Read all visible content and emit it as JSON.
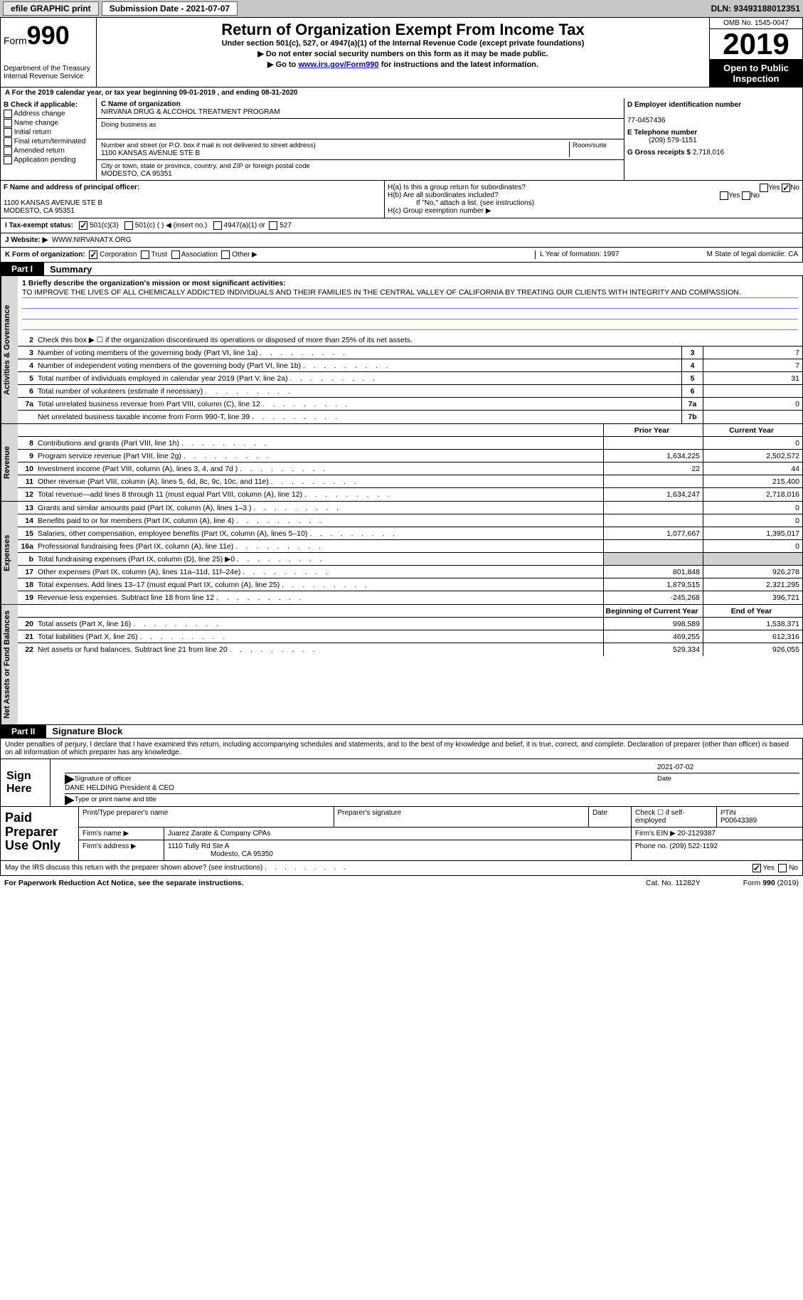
{
  "topbar": {
    "efile": "efile GRAPHIC print",
    "sub_label": "Submission Date - 2021-07-07",
    "dln": "DLN: 93493188012351"
  },
  "header": {
    "form_prefix": "Form",
    "form_num": "990",
    "dept": "Department of the Treasury\nInternal Revenue Service",
    "title": "Return of Organization Exempt From Income Tax",
    "sub": "Under section 501(c), 527, or 4947(a)(1) of the Internal Revenue Code (except private foundations)",
    "line1": "▶ Do not enter social security numbers on this form as it may be made public.",
    "line2_a": "▶ Go to ",
    "line2_link": "www.irs.gov/Form990",
    "line2_b": " for instructions and the latest information.",
    "omb": "OMB No. 1545-0047",
    "year": "2019",
    "open": "Open to Public Inspection"
  },
  "lineA": "A For the 2019 calendar year, or tax year beginning 09-01-2019    , and ending 08-31-2020",
  "colB": {
    "hdr": "B Check if applicable:",
    "opts": [
      "Address change",
      "Name change",
      "Initial return",
      "Final return/terminated",
      "Amended return",
      "Application pending"
    ]
  },
  "colC": {
    "name_lbl": "C Name of organization",
    "name": "NIRVANA DRUG & ALCOHOL TREATMENT PROGRAM",
    "dba_lbl": "Doing business as",
    "dba": "",
    "addr_lbl": "Number and street (or P.O. box if mail is not delivered to street address)",
    "room_lbl": "Room/suite",
    "addr": "1100 KANSAS AVENUE STE B",
    "city_lbl": "City or town, state or province, country, and ZIP or foreign postal code",
    "city": "MODESTO, CA  95351"
  },
  "colD": {
    "d_lbl": "D Employer identification number",
    "ein": "77-0457436",
    "e_lbl": "E Telephone number",
    "phone": "(209) 579-1151",
    "g_lbl": "G Gross receipts $",
    "gross": "2,718,016"
  },
  "rowF": {
    "f_lbl": "F Name and address of principal officer:",
    "f_addr": "1100 KANSAS AVENUE STE B\nMODESTO, CA  95351",
    "ha": "H(a)  Is this a group return for subordinates?",
    "hb": "H(b)  Are all subordinates included?",
    "hb_note": "If \"No,\" attach a list. (see instructions)",
    "hc": "H(c)  Group exemption number ▶"
  },
  "statusRow": {
    "i": "I   Tax-exempt status:",
    "o1": "501(c)(3)",
    "o2": "501(c) (  ) ◀ (insert no.)",
    "o3": "4947(a)(1) or",
    "o4": "527"
  },
  "webRow": {
    "j": "J   Website: ▶",
    "url": "WWW.NIRVANATX.ORG"
  },
  "korg": {
    "k": "K Form of organization:",
    "o1": "Corporation",
    "o2": "Trust",
    "o3": "Association",
    "o4": "Other ▶",
    "l": "L Year of formation: 1997",
    "m": "M State of legal domicile: CA"
  },
  "part1": {
    "hdr": "Part I",
    "title": "Summary"
  },
  "mission": {
    "lbl": "1   Briefly describe the organization's mission or most significant activities:",
    "text": "TO IMPROVE THE LIVES OF ALL CHEMICALLY ADDICTED INDIVIDUALS AND THEIR FAMILIES IN THE CENTRAL VALLEY OF CALIFORNIA BY TREATING OUR CLIENTS WITH INTEGRITY AND COMPASSION."
  },
  "gov": {
    "l2": "Check this box ▶ ☐  if the organization discontinued its operations or disposed of more than 25% of its net assets.",
    "rows": [
      {
        "n": "3",
        "d": "Number of voting members of the governing body (Part VI, line 1a)",
        "box": "3",
        "v": "7"
      },
      {
        "n": "4",
        "d": "Number of independent voting members of the governing body (Part VI, line 1b)",
        "box": "4",
        "v": "7"
      },
      {
        "n": "5",
        "d": "Total number of individuals employed in calendar year 2019 (Part V, line 2a)",
        "box": "5",
        "v": "31"
      },
      {
        "n": "6",
        "d": "Total number of volunteers (estimate if necessary)",
        "box": "6",
        "v": ""
      },
      {
        "n": "7a",
        "d": "Total unrelated business revenue from Part VIII, column (C), line 12",
        "box": "7a",
        "v": "0"
      },
      {
        "n": "",
        "d": "Net unrelated business taxable income from Form 990-T, line 39",
        "box": "7b",
        "v": ""
      }
    ]
  },
  "pycy": {
    "py": "Prior Year",
    "cy": "Current Year"
  },
  "rev": {
    "label": "Revenue",
    "rows": [
      {
        "n": "8",
        "d": "Contributions and grants (Part VIII, line 1h)",
        "py": "",
        "cy": "0"
      },
      {
        "n": "9",
        "d": "Program service revenue (Part VIII, line 2g)",
        "py": "1,634,225",
        "cy": "2,502,572"
      },
      {
        "n": "10",
        "d": "Investment income (Part VIII, column (A), lines 3, 4, and 7d )",
        "py": "22",
        "cy": "44"
      },
      {
        "n": "11",
        "d": "Other revenue (Part VIII, column (A), lines 5, 6d, 8c, 9c, 10c, and 11e)",
        "py": "",
        "cy": "215,400"
      },
      {
        "n": "12",
        "d": "Total revenue—add lines 8 through 11 (must equal Part VIII, column (A), line 12)",
        "py": "1,634,247",
        "cy": "2,718,016"
      }
    ]
  },
  "exp": {
    "label": "Expenses",
    "rows": [
      {
        "n": "13",
        "d": "Grants and similar amounts paid (Part IX, column (A), lines 1–3 )",
        "py": "",
        "cy": "0"
      },
      {
        "n": "14",
        "d": "Benefits paid to or for members (Part IX, column (A), line 4)",
        "py": "",
        "cy": "0"
      },
      {
        "n": "15",
        "d": "Salaries, other compensation, employee benefits (Part IX, column (A), lines 5–10)",
        "py": "1,077,667",
        "cy": "1,395,017"
      },
      {
        "n": "16a",
        "d": "Professional fundraising fees (Part IX, column (A), line 11e)",
        "py": "",
        "cy": "0"
      },
      {
        "n": "b",
        "d": "Total fundraising expenses (Part IX, column (D), line 25) ▶0",
        "py": "GREY",
        "cy": "GREY"
      },
      {
        "n": "17",
        "d": "Other expenses (Part IX, column (A), lines 11a–11d, 11f–24e)",
        "py": "801,848",
        "cy": "926,278"
      },
      {
        "n": "18",
        "d": "Total expenses. Add lines 13–17 (must equal Part IX, column (A), line 25)",
        "py": "1,879,515",
        "cy": "2,321,295"
      },
      {
        "n": "19",
        "d": "Revenue less expenses. Subtract line 18 from line 12",
        "py": "-245,268",
        "cy": "396,721"
      }
    ]
  },
  "net": {
    "label": "Net Assets or Fund Balances",
    "hdr_py": "Beginning of Current Year",
    "hdr_cy": "End of Year",
    "rows": [
      {
        "n": "20",
        "d": "Total assets (Part X, line 16)",
        "py": "998,589",
        "cy": "1,538,371"
      },
      {
        "n": "21",
        "d": "Total liabilities (Part X, line 26)",
        "py": "469,255",
        "cy": "612,316"
      },
      {
        "n": "22",
        "d": "Net assets or fund balances. Subtract line 21 from line 20",
        "py": "529,334",
        "cy": "926,055"
      }
    ]
  },
  "part2": {
    "hdr": "Part II",
    "title": "Signature Block"
  },
  "sig": {
    "declare": "Under penalties of perjury, I declare that I have examined this return, including accompanying schedules and statements, and to the best of my knowledge and belief, it is true, correct, and complete. Declaration of preparer (other than officer) is based on all information of which preparer has any knowledge.",
    "sign_here": "Sign Here",
    "sig_officer": "Signature of officer",
    "sig_date": "2021-07-02",
    "date_lbl": "Date",
    "name": "DANE HELDING  President & CEO",
    "name_lbl": "Type or print name and title"
  },
  "prep": {
    "lbl": "Paid Preparer Use Only",
    "r1": {
      "c1": "Print/Type preparer's name",
      "c2": "Preparer's signature",
      "c3": "Date",
      "c4a": "Check ☐ if self-employed",
      "c4b": "PTIN",
      "c4v": "P00643389"
    },
    "r2": {
      "c1": "Firm's name    ▶",
      "v1": "Juarez Zarate & Company CPAs",
      "c2": "Firm's EIN ▶",
      "v2": "20-2129387"
    },
    "r3": {
      "c1": "Firm's address ▶",
      "v1": "1110 Tully Rd Ste A",
      "v1b": "Modesto, CA  95350",
      "c2": "Phone no.",
      "v2": "(209) 522-1192"
    }
  },
  "footer": {
    "q": "May the IRS discuss this return with the preparer shown above? (see instructions)",
    "yes": "Yes",
    "no": "No"
  },
  "bottom": {
    "l": "For Paperwork Reduction Act Notice, see the separate instructions.",
    "m": "Cat. No. 11282Y",
    "r": "Form 990 (2019)"
  }
}
